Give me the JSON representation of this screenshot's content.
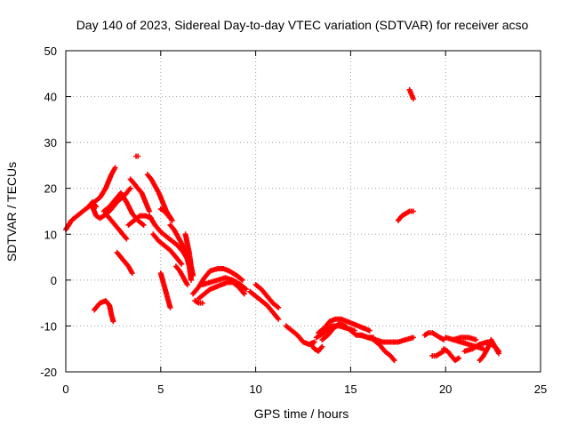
{
  "chart_data": {
    "type": "scatter",
    "title": "Day 140 of 2023, Sidereal Day-to-day VTEC variation (SDTVAR) for receiver acso",
    "xlabel": "GPS time / hours",
    "ylabel": "SDTVAR / TECUs",
    "xlim": [
      0,
      25
    ],
    "ylim": [
      -20,
      50
    ],
    "xticks": [
      0,
      5,
      10,
      15,
      20,
      25
    ],
    "yticks": [
      -20,
      -10,
      0,
      10,
      20,
      30,
      40,
      50
    ],
    "xtick_labels": [
      "0",
      "5",
      "10",
      "15",
      "20",
      "25"
    ],
    "ytick_labels": [
      "-20",
      "-10",
      "0",
      "10",
      "20",
      "30",
      "40",
      "50"
    ],
    "grid": true,
    "marker": "+",
    "color": "#ff0000",
    "series": [
      {
        "name": "arc-01",
        "x": [
          0.0,
          0.3,
          0.6,
          0.9,
          1.2,
          1.4,
          1.6
        ],
        "y": [
          11,
          13,
          14,
          15,
          16,
          17,
          16
        ]
      },
      {
        "name": "arc-02",
        "x": [
          1.2,
          1.5,
          1.8,
          2.1,
          2.4,
          2.6
        ],
        "y": [
          16,
          17,
          18,
          20,
          23,
          24.5
        ]
      },
      {
        "name": "arc-03",
        "x": [
          1.4,
          1.6,
          1.8,
          2.0,
          2.3,
          2.6,
          2.8,
          3.0,
          3.2,
          3.4
        ],
        "y": [
          16,
          14,
          13.5,
          14,
          15,
          16.5,
          17.5,
          18,
          19,
          20
        ]
      },
      {
        "name": "arc-04",
        "x": [
          2.0,
          2.3,
          2.6,
          2.9,
          3.2,
          3.5,
          3.8,
          4.1
        ],
        "y": [
          15,
          16,
          17.5,
          19,
          17,
          14.5,
          13,
          12
        ]
      },
      {
        "name": "arc-05",
        "x": [
          2.2,
          2.4,
          2.6,
          2.8,
          3.0,
          3.2
        ],
        "y": [
          14,
          13,
          12,
          11,
          10,
          9
        ]
      },
      {
        "name": "arc-06",
        "x": [
          2.7,
          2.9,
          3.1,
          3.3,
          3.5
        ],
        "y": [
          6,
          5,
          4,
          3,
          1.5
        ]
      },
      {
        "name": "arc-07",
        "x": [
          3.4,
          3.6,
          3.8,
          4.0,
          4.2,
          4.4
        ],
        "y": [
          22,
          21,
          20,
          19,
          17,
          15
        ]
      },
      {
        "name": "arc-08",
        "x": [
          3.3,
          3.6,
          3.9,
          4.2,
          4.5
        ],
        "y": [
          12,
          13,
          14,
          14,
          13.5
        ]
      },
      {
        "name": "arc-09",
        "x": [
          4.3,
          4.5,
          4.7,
          4.9,
          5.1,
          5.3,
          5.6
        ],
        "y": [
          23,
          22,
          20.5,
          19,
          17,
          15,
          13
        ]
      },
      {
        "name": "arc-10",
        "x": [
          4.4,
          4.7,
          5.0,
          5.3,
          5.6,
          5.9,
          6.2,
          6.5
        ],
        "y": [
          14,
          12,
          10.5,
          9.5,
          8.5,
          7.5,
          6,
          4
        ]
      },
      {
        "name": "arc-11",
        "x": [
          4.6,
          4.9,
          5.2,
          5.5,
          5.8,
          6.1
        ],
        "y": [
          10,
          8.5,
          7.5,
          6.5,
          5,
          3.5
        ]
      },
      {
        "name": "arc-12",
        "x": [
          5.0,
          5.2,
          5.4,
          5.6
        ],
        "y": [
          15.5,
          15,
          14,
          13
        ]
      },
      {
        "name": "arc-13",
        "x": [
          5.5,
          5.7,
          5.9,
          6.1,
          6.3,
          6.5,
          6.6
        ],
        "y": [
          12,
          11,
          9.5,
          8,
          6,
          3,
          0
        ]
      },
      {
        "name": "arc-14",
        "x": [
          6.3,
          6.4,
          6.5,
          6.6,
          6.7
        ],
        "y": [
          10,
          8,
          6,
          3,
          1
        ]
      },
      {
        "name": "arc-15",
        "x": [
          5.0,
          5.1,
          5.2,
          5.3,
          5.4,
          5.5
        ],
        "y": [
          1.5,
          0,
          -1.5,
          -3,
          -4.5,
          -6
        ]
      },
      {
        "name": "arc-16",
        "x": [
          5.8,
          6.0,
          6.2,
          6.4
        ],
        "y": [
          3,
          2,
          0.5,
          -1
        ]
      },
      {
        "name": "arc-17",
        "x": [
          1.5,
          1.8,
          2.1,
          2.3,
          2.4,
          2.5
        ],
        "y": [
          -6.5,
          -5,
          -4.5,
          -5.5,
          -7.5,
          -9
        ]
      },
      {
        "name": "arc-18",
        "x": [
          3.7,
          3.8
        ],
        "y": [
          27,
          27
        ]
      },
      {
        "name": "arc-19",
        "x": [
          6.7,
          7.0,
          7.3,
          7.6,
          8.0,
          8.3,
          8.6,
          9.0,
          9.3
        ],
        "y": [
          -3,
          -1.5,
          0.5,
          2,
          2.5,
          2.5,
          2,
          1,
          0
        ]
      },
      {
        "name": "arc-20",
        "x": [
          7.0,
          7.3,
          7.6,
          7.9,
          8.2,
          8.5,
          8.8,
          9.1,
          9.4
        ],
        "y": [
          -4,
          -3,
          -2,
          -1.5,
          -1,
          -0.5,
          -0.5,
          -1.5,
          -3
        ]
      },
      {
        "name": "arc-21",
        "x": [
          7.2,
          7.6,
          8.0,
          8.4,
          8.8,
          9.2,
          9.5
        ],
        "y": [
          -1,
          -0.5,
          0,
          0.5,
          0,
          -1,
          -2
        ]
      },
      {
        "name": "arc-22",
        "x": [
          6.8,
          7.0,
          7.2
        ],
        "y": [
          -4.5,
          -5,
          -5
        ]
      },
      {
        "name": "arc-23",
        "x": [
          9.7,
          10.0,
          10.3,
          10.6,
          10.9,
          11.2
        ],
        "y": [
          -2.5,
          -3.5,
          -4.5,
          -5.5,
          -7,
          -8.5
        ]
      },
      {
        "name": "arc-24",
        "x": [
          10.0,
          10.3,
          10.6,
          10.9,
          11.2
        ],
        "y": [
          -1,
          -2,
          -3.5,
          -5,
          -6
        ]
      },
      {
        "name": "arc-25",
        "x": [
          11.6,
          11.9,
          12.2,
          12.5,
          12.8,
          13.1
        ],
        "y": [
          -10,
          -11,
          -12,
          -13.5,
          -14,
          -13.5
        ]
      },
      {
        "name": "arc-26",
        "x": [
          12.9,
          13.1,
          13.3,
          13.5
        ],
        "y": [
          -14,
          -15,
          -15.5,
          -14.5
        ]
      },
      {
        "name": "arc-27",
        "x": [
          13.3,
          13.6,
          13.9,
          14.2,
          14.5,
          14.8,
          15.1,
          15.4,
          15.7,
          16.0
        ],
        "y": [
          -11.5,
          -10.5,
          -9,
          -8.5,
          -8.5,
          -9,
          -9.5,
          -10,
          -10.5,
          -11
        ]
      },
      {
        "name": "arc-28",
        "x": [
          13.5,
          13.8,
          14.1,
          14.4,
          14.7,
          15.0,
          15.3,
          15.6,
          15.9,
          16.2
        ],
        "y": [
          -13,
          -12,
          -10.5,
          -9.5,
          -10,
          -11,
          -12,
          -12,
          -12.5,
          -12.5
        ]
      },
      {
        "name": "arc-29",
        "x": [
          13.2,
          13.6,
          14.0,
          14.4,
          14.8,
          15.2
        ],
        "y": [
          -12.5,
          -11.5,
          -10,
          -10,
          -10.5,
          -11
        ]
      },
      {
        "name": "arc-30",
        "x": [
          15.5,
          15.9,
          16.3,
          16.7,
          17.1,
          17.5,
          17.9,
          18.3
        ],
        "y": [
          -12,
          -12.5,
          -13,
          -13.5,
          -13.5,
          -13.5,
          -13,
          -12.5
        ]
      },
      {
        "name": "arc-31",
        "x": [
          16.2,
          16.5,
          16.8,
          17.1,
          17.3
        ],
        "y": [
          -13,
          -14,
          -15.5,
          -16.5,
          -17.5
        ]
      },
      {
        "name": "arc-32",
        "x": [
          17.5,
          17.7,
          17.9,
          18.1,
          18.3
        ],
        "y": [
          13,
          14,
          14.5,
          15,
          15
        ]
      },
      {
        "name": "arc-33",
        "x": [
          18.1,
          18.2,
          18.3
        ],
        "y": [
          41.5,
          40.5,
          39.5
        ]
      },
      {
        "name": "arc-34",
        "x": [
          18.9,
          19.1,
          19.3,
          19.5,
          19.7,
          19.9
        ],
        "y": [
          -12,
          -11.5,
          -11.5,
          -12,
          -12.5,
          -13
        ]
      },
      {
        "name": "arc-35",
        "x": [
          19.3,
          19.5,
          19.7,
          19.9
        ],
        "y": [
          -16.5,
          -16.5,
          -16,
          -15.5
        ]
      },
      {
        "name": "arc-36",
        "x": [
          19.9,
          20.1,
          20.3,
          20.5,
          20.7
        ],
        "y": [
          -15,
          -15.5,
          -16.5,
          -17.5,
          -17
        ]
      },
      {
        "name": "arc-37",
        "x": [
          20.0,
          20.4,
          20.8,
          21.2,
          21.6,
          22.0
        ],
        "y": [
          -12.5,
          -13,
          -13.5,
          -14,
          -14.5,
          -15
        ]
      },
      {
        "name": "arc-38",
        "x": [
          21.0,
          21.4,
          21.8,
          22.2,
          22.6,
          22.8
        ],
        "y": [
          -15.5,
          -15,
          -14,
          -13.5,
          -14.5,
          -16
        ]
      },
      {
        "name": "arc-39",
        "x": [
          21.8,
          22.0,
          22.2,
          22.4,
          22.6,
          22.8
        ],
        "y": [
          -17.5,
          -16.5,
          -15,
          -13,
          -14.5,
          -15.5
        ]
      },
      {
        "name": "arc-40",
        "x": [
          20.4,
          20.8,
          21.2,
          21.6
        ],
        "y": [
          -13,
          -12.5,
          -12.5,
          -13
        ]
      }
    ]
  }
}
